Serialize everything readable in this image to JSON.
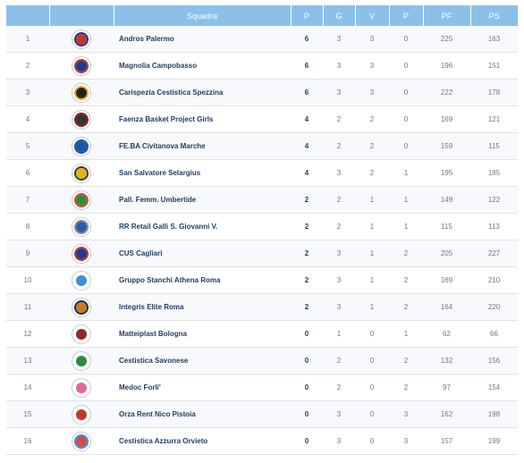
{
  "header": {
    "pos": "",
    "logo": "",
    "team": "Squadra",
    "p": "P",
    "g": "G",
    "v": "V",
    "p2": "P",
    "pf": "PF",
    "ps": "PS"
  },
  "rows": [
    {
      "pos": "1",
      "team": "Andros Palermo",
      "pts": "6",
      "g": "3",
      "v": "3",
      "p": "0",
      "pf": "225",
      "ps": "163",
      "logo_icon": "andros-palermo-logo-icon",
      "logo_color": "#c0392b",
      "logo_ring": "#1f3a8f"
    },
    {
      "pos": "2",
      "team": "Magnolia Campobasso",
      "pts": "6",
      "g": "3",
      "v": "3",
      "p": "0",
      "pf": "196",
      "ps": "151",
      "logo_icon": "magnolia-campobasso-logo-icon",
      "logo_color": "#1f3a8f",
      "logo_ring": "#c0392b"
    },
    {
      "pos": "3",
      "team": "Carispezia Cestistica Spezzina",
      "pts": "6",
      "g": "3",
      "v": "3",
      "p": "0",
      "pf": "222",
      "ps": "178",
      "logo_icon": "cestistica-spezzina-logo-icon",
      "logo_color": "#222222",
      "logo_ring": "#e3b21b"
    },
    {
      "pos": "4",
      "team": "Faenza Basket Project Girls",
      "pts": "4",
      "g": "2",
      "v": "2",
      "p": "0",
      "pf": "169",
      "ps": "121",
      "logo_icon": "faenza-basket-logo-icon",
      "logo_color": "#333333",
      "logo_ring": "#8a1d1d"
    },
    {
      "pos": "5",
      "team": "FE.BA Civitanova Marche",
      "pts": "4",
      "g": "2",
      "v": "2",
      "p": "0",
      "pf": "159",
      "ps": "115",
      "logo_icon": "feba-civitanova-logo-icon",
      "logo_color": "#1b56a6",
      "logo_ring": "#1b56a6"
    },
    {
      "pos": "6",
      "team": "San Salvatore Selargius",
      "pts": "4",
      "g": "3",
      "v": "2",
      "p": "1",
      "pf": "195",
      "ps": "185",
      "logo_icon": "san-salvatore-selargius-logo-icon",
      "logo_color": "#e3b21b",
      "logo_ring": "#3a3a3a"
    },
    {
      "pos": "7",
      "team": "Pall. Femm. Umbertide",
      "pts": "2",
      "g": "2",
      "v": "1",
      "p": "1",
      "pf": "149",
      "ps": "122",
      "logo_icon": "umbertide-logo-icon",
      "logo_color": "#2e8b3e",
      "logo_ring": "#d94a2b"
    },
    {
      "pos": "8",
      "team": "RR Retail Galli S. Giovanni V.",
      "pts": "2",
      "g": "2",
      "v": "1",
      "p": "1",
      "pf": "115",
      "ps": "113",
      "logo_icon": "galli-san-giovanni-logo-icon",
      "logo_color": "#2a5caa",
      "logo_ring": "#8c8c8c"
    },
    {
      "pos": "9",
      "team": "CUS Cagliari",
      "pts": "2",
      "g": "3",
      "v": "1",
      "p": "2",
      "pf": "205",
      "ps": "227",
      "logo_icon": "cus-cagliari-logo-icon",
      "logo_color": "#1f3a8f",
      "logo_ring": "#c0392b"
    },
    {
      "pos": "10",
      "team": "Gruppo Stanchi Athena Roma",
      "pts": "2",
      "g": "3",
      "v": "1",
      "p": "2",
      "pf": "169",
      "ps": "210",
      "logo_icon": "athena-roma-logo-icon",
      "logo_color": "#3b8ed8",
      "logo_ring": "#ffffff"
    },
    {
      "pos": "11",
      "team": "Integris Elite Roma",
      "pts": "2",
      "g": "3",
      "v": "1",
      "p": "2",
      "pf": "164",
      "ps": "220",
      "logo_icon": "elite-roma-logo-icon",
      "logo_color": "#c77b1e",
      "logo_ring": "#1b2a5c"
    },
    {
      "pos": "12",
      "team": "Matteiplast Bologna",
      "pts": "0",
      "g": "1",
      "v": "0",
      "p": "1",
      "pf": "62",
      "ps": "66",
      "logo_icon": "matteiplast-bologna-logo-icon",
      "logo_color": "#8a2b2b",
      "logo_ring": "#ffffff"
    },
    {
      "pos": "13",
      "team": "Cestistica Savonese",
      "pts": "0",
      "g": "2",
      "v": "0",
      "p": "2",
      "pf": "132",
      "ps": "156",
      "logo_icon": "cestistica-savonese-logo-icon",
      "logo_color": "#2e8b3e",
      "logo_ring": "#ffffff"
    },
    {
      "pos": "14",
      "team": "Medoc Forli'",
      "pts": "0",
      "g": "2",
      "v": "0",
      "p": "2",
      "pf": "97",
      "ps": "154",
      "logo_icon": "medoc-forli-logo-icon",
      "logo_color": "#e06a9a",
      "logo_ring": "#ffffff"
    },
    {
      "pos": "15",
      "team": "Orza Rent Nico Pistoia",
      "pts": "0",
      "g": "3",
      "v": "0",
      "p": "3",
      "pf": "162",
      "ps": "198",
      "logo_icon": "nico-pistoia-logo-icon",
      "logo_color": "#c0392b",
      "logo_ring": "#ffffff"
    },
    {
      "pos": "16",
      "team": "Cestistica Azzurra Orvieto",
      "pts": "0",
      "g": "3",
      "v": "0",
      "p": "3",
      "pf": "157",
      "ps": "199",
      "logo_icon": "azzurra-orvieto-logo-icon",
      "logo_color": "#d24a4a",
      "logo_ring": "#3b8ed8"
    }
  ],
  "colors": {
    "header_bg": "#8bc0ea",
    "team_text": "#1f3a5f",
    "row_alt": "#f7f9fc"
  }
}
